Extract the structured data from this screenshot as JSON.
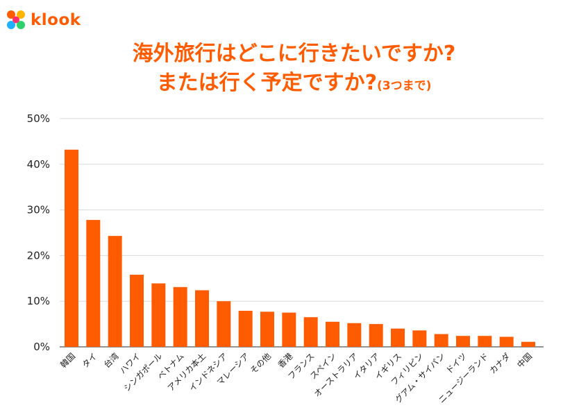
{
  "brand": {
    "name": "klook",
    "color": "#ff5b00"
  },
  "title": {
    "line1": "海外旅行はどこに行きたいですか?",
    "line2": "または行く予定ですか?",
    "note": "(3つまで)"
  },
  "chart_data": {
    "type": "bar",
    "categories": [
      "韓国",
      "タイ",
      "台湾",
      "ハワイ",
      "シンガポール",
      "ベトナム",
      "アメリカ本土",
      "インドネシア",
      "マレーシア",
      "その他",
      "香港",
      "フランス",
      "スペイン",
      "オーストラリア",
      "イタリア",
      "イギリス",
      "フィリピン",
      "グアム・サイパン",
      "ドイツ",
      "ニュージーランド",
      "カナダ",
      "中国"
    ],
    "values": [
      43.2,
      27.8,
      24.3,
      15.8,
      13.9,
      13.1,
      12.4,
      10.0,
      7.9,
      7.7,
      7.5,
      6.5,
      5.5,
      5.2,
      5.0,
      4.0,
      3.6,
      2.8,
      2.4,
      2.4,
      2.2,
      1.1
    ],
    "yticks": [
      "0%",
      "10%",
      "20%",
      "30%",
      "40%",
      "50%"
    ],
    "ylim": [
      0,
      50
    ],
    "grid": true,
    "bar_color": "#ff5b00",
    "grid_color": "#d9d9d9"
  }
}
